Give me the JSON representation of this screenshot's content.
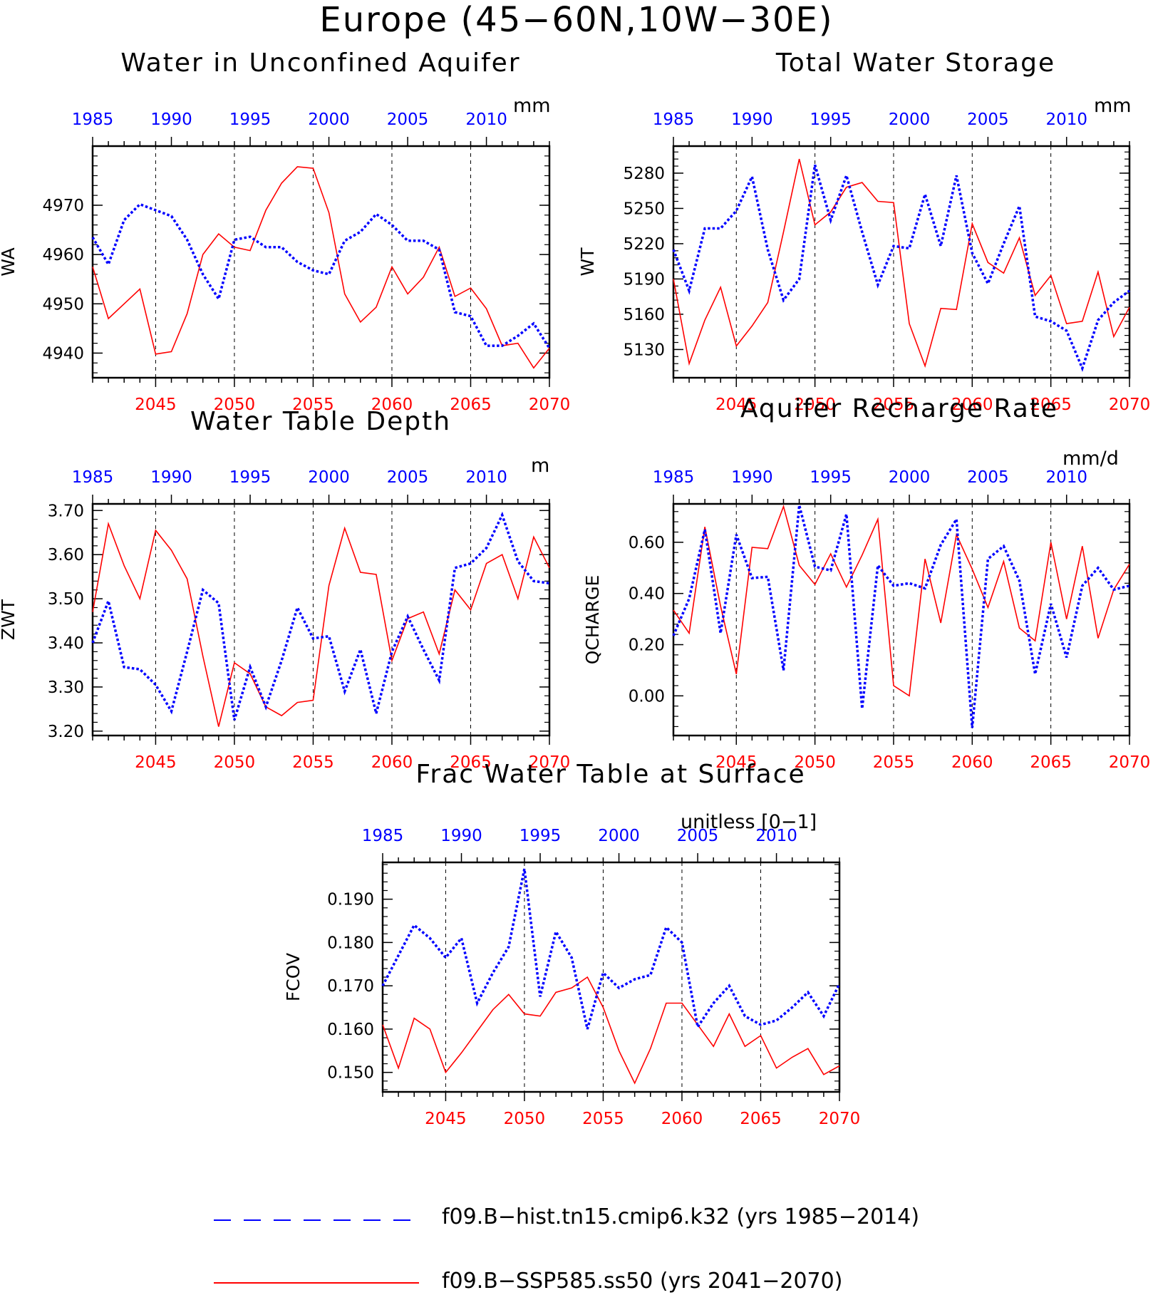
{
  "title": "Europe (45−60N,10W−30E)",
  "colors": {
    "hist": "#0000ff",
    "ssp": "#ff0000",
    "axis": "#000000"
  },
  "top_axis_years": [
    1985,
    1990,
    1995,
    2000,
    2005,
    2010
  ],
  "bottom_axis_years": [
    2045,
    2050,
    2055,
    2060,
    2065,
    2070
  ],
  "legend": [
    {
      "label": "f09.B−hist.tn15.cmip6.k32 (yrs 1985−2014)",
      "style": "dashed",
      "color": "#0000ff"
    },
    {
      "label": "f09.B−SSP585.ss50 (yrs 2041−2070)",
      "style": "solid",
      "color": "#ff0000"
    }
  ],
  "chart_data": [
    {
      "type": "line",
      "title": "Water in Unconfined Aquifer",
      "units": "mm",
      "ylabel": "WA",
      "ylim": [
        4935,
        4982
      ],
      "yticks": [
        4940,
        4950,
        4960,
        4970
      ],
      "ytick_labels": [
        "4940",
        "4950",
        "4960",
        "4970"
      ],
      "x_hist": [
        1985,
        1986,
        1987,
        1988,
        1989,
        1990,
        1991,
        1992,
        1993,
        1994,
        1995,
        1996,
        1997,
        1998,
        1999,
        2000,
        2001,
        2002,
        2003,
        2004,
        2005,
        2006,
        2007,
        2008,
        2009,
        2010,
        2011,
        2012,
        2013,
        2014
      ],
      "x_ssp": [
        2041,
        2042,
        2043,
        2044,
        2045,
        2046,
        2047,
        2048,
        2049,
        2050,
        2051,
        2052,
        2053,
        2054,
        2055,
        2056,
        2057,
        2058,
        2059,
        2060,
        2061,
        2062,
        2063,
        2064,
        2065,
        2066,
        2067,
        2068,
        2069,
        2070
      ],
      "series": [
        {
          "name": "f09.B−hist.tn15.cmip6.k32",
          "values": [
            4963.5,
            4958,
            4967,
            4970.2,
            4969,
            4967.8,
            4963,
            4956,
            4951,
            4963,
            4963.6,
            4961.5,
            4961.5,
            4958.5,
            4956.8,
            4956,
            4962.8,
            4964.6,
            4968.2,
            4966,
            4962.8,
            4962.8,
            4961,
            4948.3,
            4947.5,
            4941.5,
            4941.5,
            4943.5,
            4946,
            4941
          ]
        },
        {
          "name": "f09.B−SSP585.ss50",
          "values": [
            4957.5,
            4947,
            4950,
            4953,
            4939.8,
            4940.3,
            4948,
            4960,
            4964.2,
            4961.5,
            4960.8,
            4969,
            4974.5,
            4977.8,
            4977.5,
            4968.5,
            4952,
            4946.3,
            4949.3,
            4957.5,
            4952,
            4955.4,
            4961.5,
            4951.5,
            4953.2,
            4949,
            4941.5,
            4942,
            4937,
            4941
          ]
        }
      ]
    },
    {
      "type": "line",
      "title": "Total Water Storage",
      "units": "mm",
      "ylabel": "WT",
      "ylim": [
        5106,
        5303
      ],
      "yticks": [
        5130,
        5160,
        5190,
        5220,
        5250,
        5280
      ],
      "ytick_labels": [
        "5130",
        "5160",
        "5190",
        "5220",
        "5250",
        "5280"
      ],
      "x_hist": [
        1985,
        1986,
        1987,
        1988,
        1989,
        1990,
        1991,
        1992,
        1993,
        1994,
        1995,
        1996,
        1997,
        1998,
        1999,
        2000,
        2001,
        2002,
        2003,
        2004,
        2005,
        2006,
        2007,
        2008,
        2009,
        2010,
        2011,
        2012,
        2013,
        2014
      ],
      "x_ssp": [
        2041,
        2042,
        2043,
        2044,
        2045,
        2046,
        2047,
        2048,
        2049,
        2050,
        2051,
        2052,
        2053,
        2054,
        2055,
        2056,
        2057,
        2058,
        2059,
        2060,
        2061,
        2062,
        2063,
        2064,
        2065,
        2066,
        2067,
        2068,
        2069,
        2070
      ],
      "series": [
        {
          "name": "f09.B−hist.tn15.cmip6.k32",
          "values": [
            5215,
            5180,
            5233,
            5233,
            5248,
            5277,
            5215,
            5172,
            5190,
            5287,
            5240,
            5278,
            5230,
            5185,
            5218,
            5216,
            5262,
            5218,
            5278,
            5212,
            5186,
            5220,
            5252,
            5158,
            5154,
            5146,
            5114,
            5155,
            5170,
            5180
          ]
        },
        {
          "name": "f09.B−SSP585.ss50",
          "values": [
            5190,
            5118,
            5155,
            5183,
            5133,
            5150,
            5170,
            5230,
            5292,
            5236,
            5247,
            5268,
            5272,
            5256,
            5255,
            5152,
            5116,
            5165,
            5164,
            5237,
            5204,
            5195,
            5225,
            5176,
            5193,
            5152,
            5154,
            5196,
            5141,
            5166
          ]
        }
      ]
    },
    {
      "type": "line",
      "title": "Water Table Depth",
      "units": "m",
      "ylabel": "ZWT",
      "ylim": [
        3.19,
        3.715
      ],
      "yticks": [
        3.2,
        3.3,
        3.4,
        3.5,
        3.6,
        3.7
      ],
      "ytick_labels": [
        "3.20",
        "3.30",
        "3.40",
        "3.50",
        "3.60",
        "3.70"
      ],
      "x_hist": [
        1985,
        1986,
        1987,
        1988,
        1989,
        1990,
        1991,
        1992,
        1993,
        1994,
        1995,
        1996,
        1997,
        1998,
        1999,
        2000,
        2001,
        2002,
        2003,
        2004,
        2005,
        2006,
        2007,
        2008,
        2009,
        2010,
        2011,
        2012,
        2013,
        2014
      ],
      "x_ssp": [
        2041,
        2042,
        2043,
        2044,
        2045,
        2046,
        2047,
        2048,
        2049,
        2050,
        2051,
        2052,
        2053,
        2054,
        2055,
        2056,
        2057,
        2058,
        2059,
        2060,
        2061,
        2062,
        2063,
        2064,
        2065,
        2066,
        2067,
        2068,
        2069,
        2070
      ],
      "series": [
        {
          "name": "f09.B−hist.tn15.cmip6.k32",
          "values": [
            3.4,
            3.495,
            3.345,
            3.34,
            3.305,
            3.245,
            3.38,
            3.52,
            3.49,
            3.225,
            3.345,
            3.255,
            3.36,
            3.48,
            3.41,
            3.415,
            3.29,
            3.385,
            3.24,
            3.38,
            3.46,
            3.385,
            3.315,
            3.57,
            3.58,
            3.615,
            3.69,
            3.585,
            3.54,
            3.535
          ]
        },
        {
          "name": "f09.B−SSP585.ss50",
          "values": [
            3.47,
            3.67,
            3.575,
            3.5,
            3.655,
            3.61,
            3.545,
            3.37,
            3.21,
            3.355,
            3.33,
            3.255,
            3.235,
            3.265,
            3.27,
            3.53,
            3.66,
            3.56,
            3.555,
            3.36,
            3.455,
            3.47,
            3.375,
            3.52,
            3.475,
            3.58,
            3.6,
            3.5,
            3.64,
            3.57
          ]
        }
      ]
    },
    {
      "type": "line",
      "title": "Aquifer Recharge Rate",
      "units": "mm/d",
      "ylabel": "QCHARGE",
      "ylim": [
        -0.155,
        0.75
      ],
      "yticks": [
        0.0,
        0.2,
        0.4,
        0.6
      ],
      "ytick_labels": [
        "0.00",
        "0.20",
        "0.40",
        "0.60"
      ],
      "x_hist": [
        1985,
        1986,
        1987,
        1988,
        1989,
        1990,
        1991,
        1992,
        1993,
        1994,
        1995,
        1996,
        1997,
        1998,
        1999,
        2000,
        2001,
        2002,
        2003,
        2004,
        2005,
        2006,
        2007,
        2008,
        2009,
        2010,
        2011,
        2012,
        2013,
        2014
      ],
      "x_ssp": [
        2041,
        2042,
        2043,
        2044,
        2045,
        2046,
        2047,
        2048,
        2049,
        2050,
        2051,
        2052,
        2053,
        2054,
        2055,
        2056,
        2057,
        2058,
        2059,
        2060,
        2061,
        2062,
        2063,
        2064,
        2065,
        2066,
        2067,
        2068,
        2069,
        2070
      ],
      "series": [
        {
          "name": "f09.B−hist.tn15.cmip6.k32",
          "values": [
            0.235,
            0.38,
            0.65,
            0.245,
            0.63,
            0.46,
            0.465,
            0.1,
            0.745,
            0.505,
            0.49,
            0.71,
            -0.05,
            0.51,
            0.43,
            0.44,
            0.42,
            0.59,
            0.69,
            -0.125,
            0.535,
            0.585,
            0.45,
            0.085,
            0.36,
            0.15,
            0.43,
            0.5,
            0.415,
            0.43
          ]
        },
        {
          "name": "f09.B−SSP585.ss50",
          "values": [
            0.335,
            0.245,
            0.66,
            0.35,
            0.085,
            0.58,
            0.575,
            0.74,
            0.51,
            0.435,
            0.555,
            0.425,
            0.55,
            0.69,
            0.04,
            0.0,
            0.535,
            0.285,
            0.63,
            0.495,
            0.345,
            0.525,
            0.265,
            0.215,
            0.6,
            0.3,
            0.585,
            0.225,
            0.415,
            0.515
          ]
        }
      ]
    },
    {
      "type": "line",
      "title": "Frac Water Table at Surface",
      "units": "unitless [0−1]",
      "ylabel": "FCOV",
      "ylim": [
        0.1455,
        0.1985
      ],
      "yticks": [
        0.15,
        0.16,
        0.17,
        0.18,
        0.19
      ],
      "ytick_labels": [
        "0.150",
        "0.160",
        "0.170",
        "0.180",
        "0.190"
      ],
      "x_hist": [
        1985,
        1986,
        1987,
        1988,
        1989,
        1990,
        1991,
        1992,
        1993,
        1994,
        1995,
        1996,
        1997,
        1998,
        1999,
        2000,
        2001,
        2002,
        2003,
        2004,
        2005,
        2006,
        2007,
        2008,
        2009,
        2010,
        2011,
        2012,
        2013,
        2014
      ],
      "x_ssp": [
        2041,
        2042,
        2043,
        2044,
        2045,
        2046,
        2047,
        2048,
        2049,
        2050,
        2051,
        2052,
        2053,
        2054,
        2055,
        2056,
        2057,
        2058,
        2059,
        2060,
        2061,
        2062,
        2063,
        2064,
        2065,
        2066,
        2067,
        2068,
        2069,
        2070
      ],
      "series": [
        {
          "name": "f09.B−hist.tn15.cmip6.k32",
          "values": [
            0.17,
            0.177,
            0.184,
            0.181,
            0.1765,
            0.181,
            0.166,
            0.173,
            0.179,
            0.197,
            0.1675,
            0.1825,
            0.1765,
            0.16,
            0.173,
            0.1695,
            0.1715,
            0.1725,
            0.1835,
            0.18,
            0.1605,
            0.166,
            0.17,
            0.163,
            0.161,
            0.162,
            0.165,
            0.1685,
            0.163,
            0.1705
          ]
        },
        {
          "name": "f09.B−SSP585.ss50",
          "values": [
            0.161,
            0.151,
            0.1625,
            0.16,
            0.15,
            0.1545,
            0.1595,
            0.1645,
            0.168,
            0.1635,
            0.163,
            0.1685,
            0.1695,
            0.172,
            0.165,
            0.155,
            0.1475,
            0.1555,
            0.166,
            0.166,
            0.161,
            0.156,
            0.1635,
            0.156,
            0.1585,
            0.151,
            0.1535,
            0.1555,
            0.1495,
            0.1515
          ]
        }
      ]
    }
  ]
}
